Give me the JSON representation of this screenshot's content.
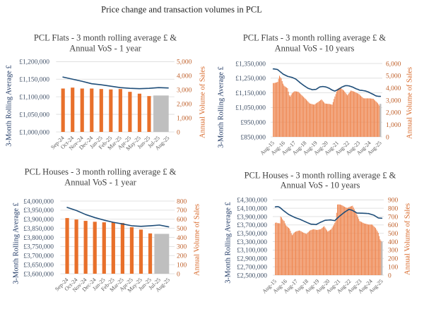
{
  "page_title": "Price change and transaction volumes in PCL",
  "colors": {
    "price_line": "#1F4E79",
    "volume_bar": "#E8702B",
    "volume_bar_10y": "#EE8650",
    "latest_bar": "#BFBFBF",
    "gridline": "#D9D9D9"
  },
  "chart_data": [
    {
      "type": "bar+line",
      "title": "PCL Flats - 3 month rolling average £ & Annual VoS - 1 year",
      "title_lines": [
        "PCL Flats - 3 month rolling average £ &",
        "Annual VoS - 1 year"
      ],
      "categories": [
        "Sep-24",
        "Oct-24",
        "Nov-24",
        "Dec-24",
        "Jan-25",
        "Feb-25",
        "Mar-25",
        "Apr-25",
        "May-25",
        "Jun-25",
        "Jul-25",
        "Aug-25"
      ],
      "y_left": {
        "label": "3-Month Rolling Average £",
        "range": [
          1000000,
          1200000
        ],
        "step": 50000,
        "tick_labels": [
          "£1,000,000",
          "£1,050,000",
          "£1,100,000",
          "£1,150,000",
          "£1,200,000"
        ]
      },
      "y_right": {
        "label": "Annual Volume of Sales",
        "range": [
          0,
          5000
        ],
        "step": 1000,
        "tick_labels": [
          "0",
          "1,000",
          "2,000",
          "3,000",
          "4,000",
          "5,000"
        ]
      },
      "grid": true,
      "legend": "none",
      "series": [
        {
          "name": "3-Month Rolling Average £",
          "type": "line",
          "axis": "left",
          "values": [
            1156000,
            1150000,
            1144000,
            1137000,
            1134000,
            1130000,
            1126000,
            1124000,
            1123000,
            1124000,
            1126000,
            1125000
          ]
        },
        {
          "name": "Annual Volume of Sales",
          "type": "bar",
          "axis": "right",
          "values": [
            3085,
            3150,
            3085,
            3085,
            3050,
            3020,
            3050,
            2850,
            2720,
            2550,
            null,
            null
          ]
        },
        {
          "name": "Annual Volume of Sales (latest)",
          "type": "bar",
          "axis": "right",
          "highlight": true,
          "points": [
            {
              "x": "Jul-25",
              "value": 2590
            },
            {
              "x": "Aug-25",
              "value": 2590
            }
          ]
        }
      ]
    },
    {
      "type": "bar+line",
      "title": "PCL Flats - 3 month rolling average £ & Annual VoS - 10 years",
      "title_lines": [
        "PCL Flats - 3 month rolling average £ &",
        "Annual VoS - 10 years"
      ],
      "x": {
        "start": "Aug-15",
        "end": "Aug-25",
        "frequency": "monthly",
        "count": 121,
        "tick_every": 12,
        "tick_labels": [
          "Aug-15",
          "Aug-16",
          "Aug-17",
          "Aug-18",
          "Aug-19",
          "Aug-20",
          "Aug-21",
          "Aug-22",
          "Aug-23",
          "Aug-24",
          "Aug-25"
        ]
      },
      "y_left": {
        "label": "3-Month Rolling Average £",
        "range": [
          850000,
          1350000
        ],
        "step": 100000,
        "tick_labels": [
          "£850,000",
          "£950,000",
          "£1,050,000",
          "£1,150,000",
          "£1,250,000",
          "£1,350,000"
        ]
      },
      "y_right": {
        "label": "Annual Volume of Sales",
        "range": [
          0,
          6000
        ],
        "step": 1000,
        "tick_labels": [
          "0",
          "1,000",
          "2,000",
          "3,000",
          "4,000",
          "5,000",
          "6,000"
        ]
      },
      "grid": true,
      "legend": "none",
      "series": [
        {
          "name": "3-Month Rolling Average £",
          "type": "line",
          "axis": "left",
          "values": [
            1313000,
            1313000,
            1312000,
            1311000,
            1310000,
            1308000,
            1303000,
            1298000,
            1293000,
            1288000,
            1283000,
            1278000,
            1275000,
            1272000,
            1269000,
            1266000,
            1263000,
            1261000,
            1260000,
            1258000,
            1257000,
            1255000,
            1253000,
            1250000,
            1247000,
            1245000,
            1240000,
            1235000,
            1230000,
            1225000,
            1219000,
            1215000,
            1210000,
            1206000,
            1201000,
            1197000,
            1193000,
            1189000,
            1185000,
            1181000,
            1179000,
            1177000,
            1175000,
            1173000,
            1171000,
            1172000,
            1173000,
            1173000,
            1174000,
            1178000,
            1182000,
            1186000,
            1190000,
            1191000,
            1192000,
            1193000,
            1193000,
            1192000,
            1191000,
            1190000,
            1188000,
            1185000,
            1183000,
            1180000,
            1176000,
            1172000,
            1169000,
            1166000,
            1164000,
            1162000,
            1165000,
            1168000,
            1171000,
            1174000,
            1178000,
            1182000,
            1186000,
            1190000,
            1192000,
            1195000,
            1197000,
            1199000,
            1199000,
            1199000,
            1198000,
            1197000,
            1195000,
            1193000,
            1191000,
            1189000,
            1186000,
            1183000,
            1180000,
            1177000,
            1175000,
            1173000,
            1170000,
            1168000,
            1167000,
            1167000,
            1166000,
            1165000,
            1164000,
            1163000,
            1161000,
            1159000,
            1157000,
            1154000,
            1151000,
            1148000,
            1145000,
            1142000,
            1139000,
            1136000,
            1132000,
            1129000,
            1128000,
            1127000,
            1126000,
            1126000,
            1126000
          ]
        },
        {
          "name": "Annual Volume of Sales",
          "type": "bar",
          "axis": "right",
          "values": [
            4400,
            4400,
            4420,
            4440,
            4460,
            4500,
            4750,
            5000,
            4880,
            4780,
            4560,
            4350,
            4200,
            4130,
            4080,
            4030,
            3980,
            3700,
            3400,
            3300,
            3420,
            3550,
            3620,
            3680,
            3730,
            3720,
            3710,
            3700,
            3690,
            3620,
            3550,
            3480,
            3400,
            3330,
            3260,
            3190,
            3115,
            3040,
            2960,
            2880,
            2800,
            2730,
            2710,
            2690,
            2670,
            2650,
            2635,
            2690,
            2740,
            2790,
            2830,
            2890,
            2940,
            3000,
            3060,
            2980,
            2890,
            2810,
            2730,
            2720,
            2710,
            2700,
            2700,
            2690,
            2670,
            2650,
            2635,
            2850,
            3100,
            3300,
            3500,
            3700,
            3900,
            3980,
            4000,
            4030,
            3980,
            3900,
            3850,
            3790,
            3700,
            3600,
            3500,
            3400,
            3500,
            3600,
            3700,
            3790,
            3760,
            3740,
            3710,
            3690,
            3650,
            3610,
            3570,
            3540,
            3500,
            3430,
            3360,
            3290,
            3220,
            3160,
            3150,
            3150,
            3150,
            3150,
            3150,
            3150,
            3150,
            3140,
            3130,
            3120,
            3115,
            3040,
            2970,
            2900,
            2830,
            2750,
            2650,
            2550,
            null
          ]
        },
        {
          "name": "Annual Volume of Sales (latest)",
          "type": "bar",
          "axis": "right",
          "highlight": true,
          "points": [
            {
              "x": "Aug-25",
              "value": 2700
            }
          ]
        }
      ]
    },
    {
      "type": "bar+line",
      "title": "PCL Houses - 3 month rolling average £ & Annual VoS - 1 year",
      "title_lines": [
        "PCL Houses - 3 month rolling average £ &",
        "Annual VoS - 1 year"
      ],
      "categories": [
        "Sep-24",
        "Oct-24",
        "Nov-24",
        "Dec-24",
        "Jan-25",
        "Feb-25",
        "Mar-25",
        "Apr-25",
        "May-25",
        "Jun-25",
        "Jul-25",
        "Aug-25"
      ],
      "y_left": {
        "label": "3-Month Rolling Average £",
        "range": [
          3600000,
          4000000
        ],
        "step": 50000,
        "tick_labels": [
          "£3,600,000",
          "£3,650,000",
          "£3,700,000",
          "£3,750,000",
          "£3,800,000",
          "£3,850,000",
          "£3,900,000",
          "£3,950,000",
          "£4,000,000"
        ]
      },
      "y_right": {
        "label": "Annual Volume of Sales",
        "range": [
          0,
          800
        ],
        "step": 100,
        "tick_labels": [
          "0",
          "100",
          "200",
          "300",
          "400",
          "500",
          "600",
          "700",
          "800"
        ]
      },
      "grid": true,
      "legend": "none",
      "series": [
        {
          "name": "3-Month Rolling Average £",
          "type": "line",
          "axis": "left",
          "values": [
            3965000,
            3948000,
            3926000,
            3909000,
            3895000,
            3883000,
            3874000,
            3864000,
            3861000,
            3864000,
            3868000,
            3858000
          ]
        },
        {
          "name": "Annual Volume of Sales",
          "type": "bar",
          "axis": "right",
          "values": [
            613,
            597,
            582,
            572,
            566,
            564,
            558,
            512,
            486,
            444,
            null,
            null
          ]
        },
        {
          "name": "Annual Volume of Sales (latest)",
          "type": "bar",
          "axis": "right",
          "highlight": true,
          "points": [
            {
              "x": "Jul-25",
              "value": 439
            },
            {
              "x": "Aug-25",
              "value": 439
            }
          ]
        }
      ]
    },
    {
      "type": "bar+line",
      "title": "PCL Houses - 3 month rolling average £ & Annual VoS - 10 years",
      "title_lines": [
        "PCL Houses - 3 month rolling average £ &",
        "Annual VoS - 10 years"
      ],
      "x": {
        "start": "Aug-15",
        "end": "Aug-25",
        "frequency": "monthly",
        "count": 121,
        "tick_every": 12,
        "tick_labels": [
          "Aug-15",
          "Aug-16",
          "Aug-17",
          "Aug-18",
          "Aug-19",
          "Aug-20",
          "Aug-21",
          "Aug-22",
          "Aug-23",
          "Aug-24",
          "Aug-25"
        ]
      },
      "y_left": {
        "label": "3-Month Rolling Average £",
        "range": [
          2500000,
          4300000
        ],
        "step": 200000,
        "tick_labels": [
          "£2,500,000",
          "£2,700,000",
          "£2,900,000",
          "£3,100,000",
          "£3,300,000",
          "£3,500,000",
          "£3,700,000",
          "£3,900,000",
          "£4,100,000",
          "£4,300,000"
        ]
      },
      "y_right": {
        "label": "Annual Volume of Sales",
        "range": [
          0,
          900
        ],
        "step": 100,
        "tick_labels": [
          "0",
          "100",
          "200",
          "300",
          "400",
          "500",
          "600",
          "700",
          "800",
          "900"
        ]
      },
      "grid": true,
      "legend": "none",
      "series": [
        {
          "name": "3-Month Rolling Average £",
          "type": "line",
          "axis": "left",
          "values": [
            4131000,
            4135000,
            4138000,
            4138000,
            4130000,
            4120000,
            4102000,
            4084000,
            4065000,
            4047000,
            4031000,
            4015000,
            3999000,
            3983000,
            3967000,
            3951000,
            3941000,
            3930000,
            3920000,
            3909000,
            3899000,
            3888000,
            3878000,
            3871000,
            3863000,
            3856000,
            3848000,
            3841000,
            3833000,
            3823000,
            3814000,
            3804000,
            3794000,
            3784000,
            3775000,
            3765000,
            3756000,
            3747000,
            3738000,
            3729000,
            3720000,
            3718000,
            3717000,
            3715000,
            3713000,
            3712000,
            3710000,
            3721000,
            3732000,
            3743000,
            3754000,
            3765000,
            3774000,
            3783000,
            3793000,
            3802000,
            3811000,
            3813000,
            3814000,
            3816000,
            3818000,
            3819000,
            3821000,
            3818000,
            3814000,
            3811000,
            3807000,
            3804000,
            3824000,
            3844000,
            3865000,
            3885000,
            3905000,
            3922000,
            3939000,
            3955000,
            3972000,
            3989000,
            4006000,
            4020000,
            4033000,
            4047000,
            4060000,
            4074000,
            4067000,
            4061000,
            4054000,
            4047000,
            4035000,
            4022000,
            4010000,
            3997000,
            3985000,
            3984000,
            3984000,
            3983000,
            3982000,
            3982000,
            3981000,
            3980000,
            3979000,
            3978000,
            3977000,
            3975000,
            3974000,
            3973000,
            3966000,
            3960000,
            3953000,
            3947000,
            3940000,
            3934000,
            3921000,
            3907000,
            3894000,
            3880000,
            3867000,
            3865000,
            3864000,
            3862000,
            3861000
          ]
        },
        {
          "name": "Annual Volume of Sales",
          "type": "bar",
          "axis": "right",
          "values": [
            625,
            630,
            625,
            620,
            622,
            619,
            700,
            690,
            670,
            655,
            647,
            620,
            595,
            585,
            575,
            565,
            555,
            530,
            500,
            478,
            490,
            505,
            515,
            521,
            525,
            528,
            531,
            534,
            530,
            525,
            518,
            512,
            507,
            502,
            497,
            492,
            503,
            513,
            524,
            534,
            538,
            542,
            546,
            549,
            547,
            544,
            542,
            540,
            542,
            545,
            547,
            549,
            558,
            567,
            576,
            585,
            569,
            553,
            537,
            521,
            528,
            535,
            542,
            549,
            568,
            586,
            605,
            626,
            647,
            745,
            844,
            846,
            845,
            844,
            840,
            835,
            830,
            823,
            818,
            812,
            807,
            803,
            808,
            813,
            818,
            822,
            826,
            830,
            809,
            788,
            766,
            745,
            721,
            696,
            672,
            647,
            641,
            636,
            630,
            625,
            619,
            616,
            614,
            611,
            608,
            605,
            605,
            605,
            605,
            605,
            594,
            584,
            573,
            563,
            544,
            525,
            506,
            467,
            428,
            410,
            null
          ]
        },
        {
          "name": "Annual Volume of Sales (latest)",
          "type": "bar",
          "axis": "right",
          "highlight": true,
          "points": [
            {
              "x": "Aug-25",
              "value": 400
            }
          ]
        }
      ]
    }
  ]
}
